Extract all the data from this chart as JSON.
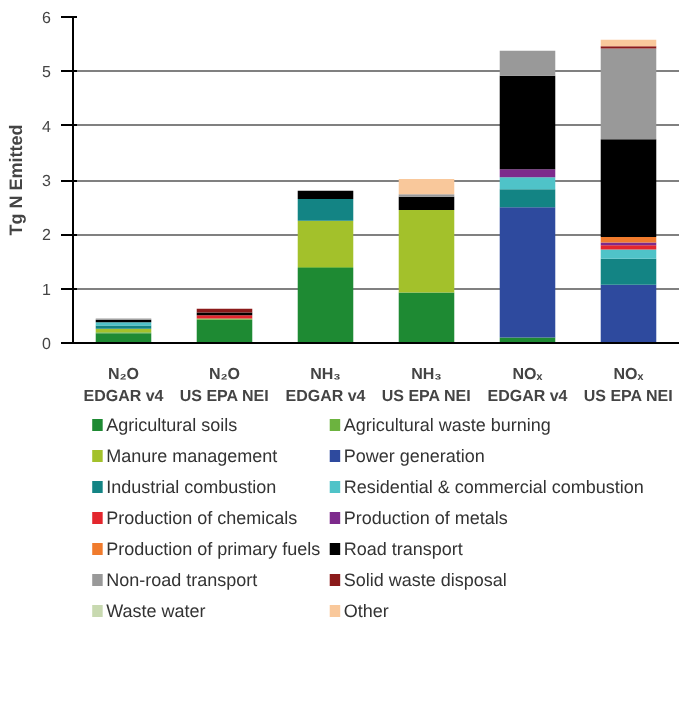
{
  "chart_data": {
    "type": "bar",
    "stacked": true,
    "ylabel": "Tg N Emitted",
    "categories": [
      "N₂O\nEDGAR v4",
      "N₂O\nUS EPA NEI",
      "NH₃\nEDGAR v4",
      "NH₃\nUS EPA NEI",
      "NOₓ\nEDGAR v4",
      "NOₓ\nUS EPA NEI"
    ],
    "ylim": [
      0,
      6
    ],
    "yticks": [
      0,
      1,
      2,
      3,
      4,
      5,
      6
    ],
    "grid": "y",
    "legend": "bottom",
    "series": [
      {
        "name": "Agricultural soils",
        "color": "#1e8a33",
        "values": [
          0.18,
          0.43,
          1.38,
          0.93,
          0.1,
          null
        ]
      },
      {
        "name": "Agricultural waste burning",
        "color": "#6cb33f",
        "values": [
          0.02,
          0.02,
          0.02,
          null,
          null,
          null
        ]
      },
      {
        "name": "Manure management",
        "color": "#a3c12b",
        "values": [
          0.06,
          null,
          0.85,
          1.52,
          null,
          null
        ]
      },
      {
        "name": "Power generation",
        "color": "#2e4a9e",
        "values": [
          null,
          null,
          null,
          null,
          2.4,
          1.07
        ]
      },
      {
        "name": "Industrial combustion",
        "color": "#138484",
        "values": [
          0.06,
          null,
          0.4,
          null,
          0.33,
          0.48
        ]
      },
      {
        "name": "Residential & commercial combustion",
        "color": "#4fc3c8",
        "values": [
          0.06,
          null,
          null,
          null,
          0.22,
          0.17
        ]
      },
      {
        "name": "Production of chemicals",
        "color": "#e3262d",
        "values": [
          null,
          0.06,
          null,
          null,
          null,
          0.08
        ]
      },
      {
        "name": "Production of metals",
        "color": "#7d2a8c",
        "values": [
          null,
          null,
          null,
          null,
          0.15,
          0.05
        ]
      },
      {
        "name": "Production of primary fuels",
        "color": "#f07b2d",
        "values": [
          null,
          null,
          null,
          null,
          null,
          0.1
        ]
      },
      {
        "name": "Road transport",
        "color": "#000000",
        "values": [
          0.05,
          0.05,
          0.15,
          0.24,
          1.72,
          1.8
        ]
      },
      {
        "name": "Non-road transport",
        "color": "#999999",
        "values": [
          0.02,
          null,
          null,
          0.05,
          0.46,
          1.67
        ]
      },
      {
        "name": "Solid waste disposal",
        "color": "#8b1a1a",
        "values": [
          null,
          0.07,
          null,
          null,
          null,
          0.04
        ]
      },
      {
        "name": "Waste water",
        "color": "#c8d9b0",
        "values": [
          null,
          null,
          null,
          null,
          null,
          null
        ]
      },
      {
        "name": "Other",
        "color": "#f9c89b",
        "values": [
          null,
          null,
          null,
          0.28,
          null,
          0.12
        ]
      }
    ]
  }
}
